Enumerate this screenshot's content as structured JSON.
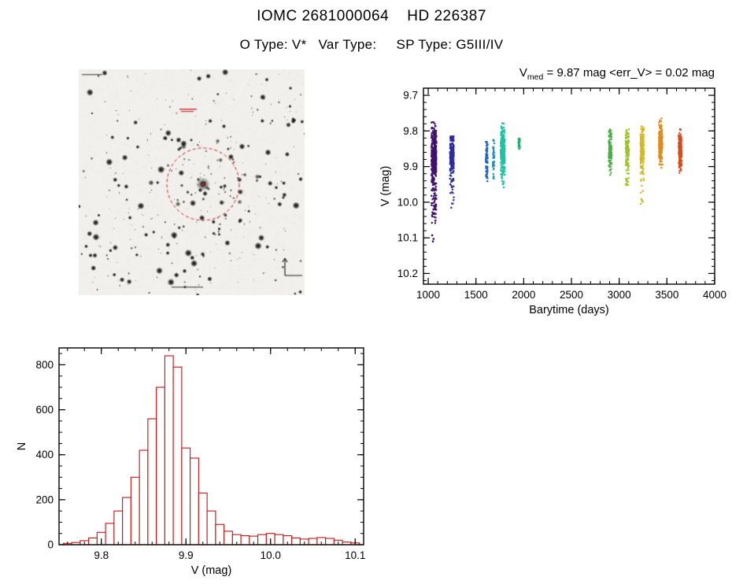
{
  "page": {
    "title_line1": "IOMC 2681000064    HD 226387",
    "subtitle": "O Type: V*   Var Type:     SP Type: G5III/IV"
  },
  "finder_chart": {
    "description": "grayscale star field finding chart with red dashed target circle",
    "marker_color": "#cc2222",
    "background_color": "#f1f0ec"
  },
  "chart_data": [
    {
      "type": "scatter",
      "name": "light_curve",
      "title": {
        "prefix": "V",
        "sub": "med",
        "rest": " = 9.87 mag <err_V> = 0.02 mag"
      },
      "v_med_mag": 9.87,
      "err_v_mag": 0.02,
      "xlabel": "Barytime (days)",
      "ylabel": "V (mag)",
      "x_axis_range": [
        950,
        4000
      ],
      "y_axis_range_top_to_bottom": [
        9.68,
        10.23
      ],
      "y_inverted": true,
      "xticks": [
        1000,
        1500,
        2000,
        2500,
        3000,
        3500,
        4000
      ],
      "xtick_labels": [
        "1000",
        "1500",
        "2000",
        "2500",
        "3000",
        "3500",
        "4000"
      ],
      "yticks": [
        9.7,
        9.8,
        9.9,
        10.0,
        10.1,
        10.2
      ],
      "ytick_labels": [
        "9.7",
        "9.8",
        "9.9",
        "10.0",
        "10.1",
        "10.2"
      ],
      "x_minor_step": 100,
      "y_minor_step": 0.02,
      "point_clusters": [
        {
          "t_center": 1060,
          "t_spread": 26,
          "v_center": 9.86,
          "v_sigma": 0.04,
          "v_min": 9.775,
          "v_max": 10.06,
          "tail_frac": 0.28,
          "n_points": 400,
          "color": "#401070"
        },
        {
          "t_center": 1248,
          "t_spread": 20,
          "v_center": 9.862,
          "v_sigma": 0.028,
          "v_min": 9.815,
          "v_max": 10.02,
          "tail_frac": 0.22,
          "n_points": 220,
          "color": "#2c2ca8"
        },
        {
          "t_center": 1612,
          "t_spread": 10,
          "v_center": 9.872,
          "v_sigma": 0.025,
          "v_min": 9.83,
          "v_max": 9.965,
          "tail_frac": 0.15,
          "n_points": 70,
          "color": "#1e66c2"
        },
        {
          "t_center": 1685,
          "t_spread": 8,
          "v_center": 9.87,
          "v_sigma": 0.03,
          "v_min": 9.82,
          "v_max": 9.985,
          "tail_frac": 0.2,
          "n_points": 45,
          "color": "#1e8fc6"
        },
        {
          "t_center": 1780,
          "t_spread": 22,
          "v_center": 9.852,
          "v_sigma": 0.032,
          "v_min": 9.775,
          "v_max": 9.96,
          "tail_frac": 0.15,
          "n_points": 300,
          "color": "#1fc3a4"
        },
        {
          "t_center": 1952,
          "t_spread": 8,
          "v_center": 9.834,
          "v_sigma": 0.007,
          "v_min": 9.82,
          "v_max": 9.852,
          "tail_frac": 0.0,
          "n_points": 26,
          "color": "#22b06e"
        },
        {
          "t_center": 2906,
          "t_spread": 15,
          "v_center": 9.852,
          "v_sigma": 0.025,
          "v_min": 9.795,
          "v_max": 9.93,
          "tail_frac": 0.12,
          "n_points": 130,
          "color": "#49b143"
        },
        {
          "t_center": 3085,
          "t_spread": 17,
          "v_center": 9.852,
          "v_sigma": 0.028,
          "v_min": 9.795,
          "v_max": 9.96,
          "tail_frac": 0.15,
          "n_points": 160,
          "color": "#9dc32b"
        },
        {
          "t_center": 3240,
          "t_spread": 18,
          "v_center": 9.85,
          "v_sigma": 0.03,
          "v_min": 9.785,
          "v_max": 10.005,
          "tail_frac": 0.18,
          "n_points": 190,
          "color": "#d6b922"
        },
        {
          "t_center": 3435,
          "t_spread": 18,
          "v_center": 9.832,
          "v_sigma": 0.028,
          "v_min": 9.762,
          "v_max": 9.908,
          "tail_frac": 0.1,
          "n_points": 210,
          "color": "#e38a17"
        },
        {
          "t_center": 3638,
          "t_spread": 15,
          "v_center": 9.85,
          "v_sigma": 0.024,
          "v_min": 9.79,
          "v_max": 9.925,
          "tail_frac": 0.1,
          "n_points": 190,
          "color": "#d84a1b"
        }
      ],
      "outlier_points": [
        {
          "t": 1042,
          "v": 10.093
        },
        {
          "t": 1056,
          "v": 10.103
        },
        {
          "t": 1049,
          "v": 10.11
        }
      ]
    },
    {
      "type": "histogram",
      "name": "v_magnitude_distribution",
      "xlabel": "V (mag)",
      "ylabel": "N",
      "x_axis_range": [
        9.75,
        10.11
      ],
      "y_axis_range": [
        0,
        875
      ],
      "xticks": [
        9.8,
        9.9,
        10.0,
        10.1
      ],
      "xtick_labels": [
        "9.8",
        "9.9",
        "10.0",
        "10.1"
      ],
      "yticks": [
        0,
        200,
        400,
        600,
        800
      ],
      "ytick_labels": [
        "0",
        "200",
        "400",
        "600",
        "800"
      ],
      "x_minor_step": 0.02,
      "y_minor_step": 50,
      "bar_color": "#c41414",
      "bin_start": 9.755,
      "bin_width": 0.01,
      "counts": [
        6,
        10,
        18,
        30,
        55,
        95,
        150,
        210,
        300,
        420,
        560,
        700,
        840,
        790,
        430,
        385,
        230,
        150,
        90,
        60,
        45,
        40,
        38,
        45,
        50,
        45,
        40,
        30,
        25,
        28,
        32,
        28,
        20,
        12,
        8
      ]
    }
  ]
}
